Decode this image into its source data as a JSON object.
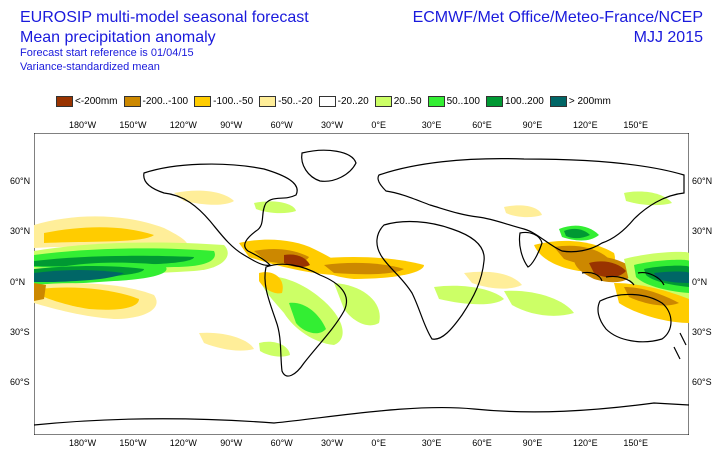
{
  "header": {
    "line1": "EUROSIP multi-model seasonal forecast",
    "line2": "Mean precipitation anomaly",
    "line3": "Forecast start reference is 01/04/15",
    "line4": "Variance-standardized mean",
    "right1": "ECMWF/Met Office/Meteo-France/NCEP",
    "right2": "MJJ 2015"
  },
  "legend": [
    {
      "label": "<-200mm",
      "color": "#993300"
    },
    {
      "label": "-200..-100",
      "color": "#cc8800"
    },
    {
      "label": "-100..-50",
      "color": "#ffcc00"
    },
    {
      "label": "-50..-20",
      "color": "#ffee99"
    },
    {
      "label": "-20..20",
      "color": "#ffffff"
    },
    {
      "label": "20..50",
      "color": "#ccff66"
    },
    {
      "label": "50..100",
      "color": "#33ee33"
    },
    {
      "label": "100..200",
      "color": "#009933"
    },
    {
      "label": "> 200mm",
      "color": "#006666"
    }
  ],
  "axes": {
    "lon_labels": [
      "180°W",
      "150°W",
      "120°W",
      "90°W",
      "60°W",
      "30°W",
      "0°E",
      "30°E",
      "60°E",
      "90°E",
      "120°E",
      "150°E"
    ],
    "lat_labels": [
      "60°N",
      "30°N",
      "0°N",
      "30°S",
      "60°S"
    ]
  }
}
